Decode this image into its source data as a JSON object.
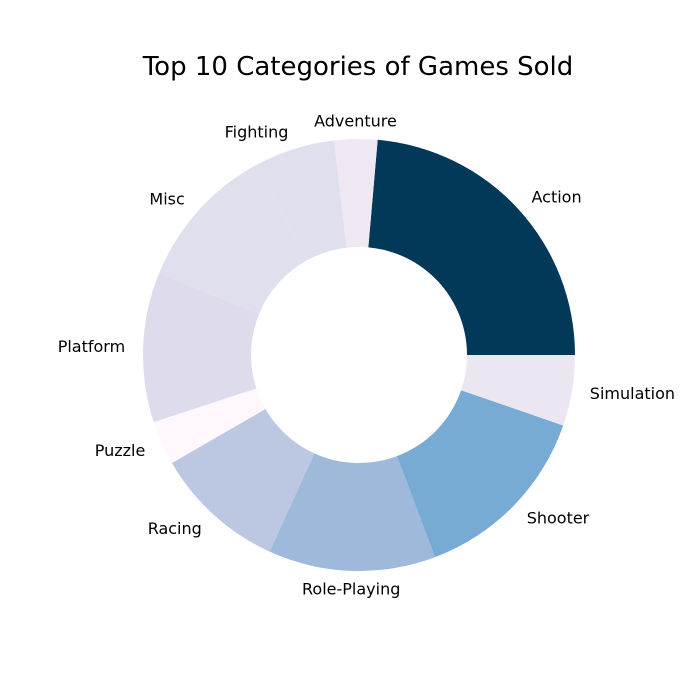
{
  "chart_data": {
    "type": "pie",
    "donut": true,
    "title": "Top 10 Categories of Games Sold",
    "categories": [
      "Action",
      "Adventure",
      "Fighting",
      "Misc",
      "Platform",
      "Puzzle",
      "Racing",
      "Role-Playing",
      "Shooter",
      "Simulation"
    ],
    "values": [
      1751,
      239,
      449,
      809,
      831,
      245,
      732,
      927,
      1037,
      392
    ],
    "colors": [
      "#023858",
      "#efe8f2",
      "#e0dfee",
      "#e0dfee",
      "#dddbec",
      "#fff7fb",
      "#bcc8e1",
      "#9eb9d9",
      "#78abd3",
      "#ece6f2"
    ],
    "start_angle_deg": 0,
    "direction": "counterclockwise",
    "legend": "none"
  }
}
